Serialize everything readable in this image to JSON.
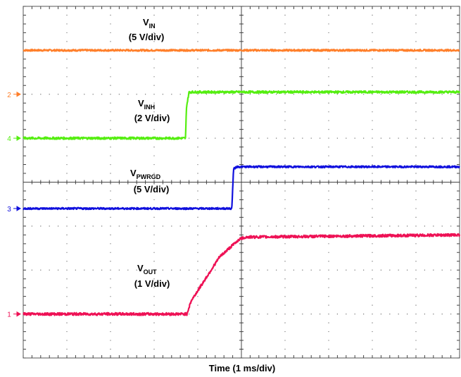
{
  "chart_data": {
    "type": "line",
    "xlabel": "Time (1 ms/div)",
    "x_unit": "ms",
    "xlim": [
      0,
      10
    ],
    "ylim": [
      -4,
      4
    ],
    "grid": true,
    "divisions": {
      "x": 10,
      "y": 8
    },
    "series": [
      {
        "name": "VIN",
        "label_main": "V",
        "label_sub": "IN",
        "scale": "(5 V/div)",
        "channel": "2",
        "ground_div": 2.0,
        "color": "#ff7f2a",
        "x": [
          0,
          10
        ],
        "y_div": [
          3.0,
          3.0
        ],
        "noise": 0.02
      },
      {
        "name": "VINH",
        "label_main": "V",
        "label_sub": "INH",
        "scale": "(2 V/div)",
        "channel": "4",
        "ground_div": 1.0,
        "color": "#55ee11",
        "x": [
          0,
          3.72,
          3.74,
          3.8,
          10
        ],
        "y_div": [
          1.0,
          1.0,
          1.7,
          2.05,
          2.05
        ],
        "noise": 0.025
      },
      {
        "name": "VPWRGD",
        "label_main": "V",
        "label_sub": "PWRGD",
        "scale": "(5 V/div)",
        "channel": "3",
        "ground_div": -0.6,
        "color": "#1010dd",
        "x": [
          0,
          4.78,
          4.82,
          4.9,
          10
        ],
        "y_div": [
          -0.6,
          -0.6,
          0.3,
          0.35,
          0.35
        ],
        "noise": 0.02
      },
      {
        "name": "VOUT",
        "label_main": "V",
        "label_sub": "OUT",
        "scale": "(1 V/div)",
        "channel": "1",
        "ground_div": -3.0,
        "color": "#ee1155",
        "x": [
          0,
          3.75,
          3.85,
          4.5,
          4.95,
          5.1,
          10
        ],
        "y_div": [
          -3.0,
          -3.0,
          -2.7,
          -1.7,
          -1.3,
          -1.25,
          -1.2
        ],
        "noise": 0.03
      }
    ]
  }
}
